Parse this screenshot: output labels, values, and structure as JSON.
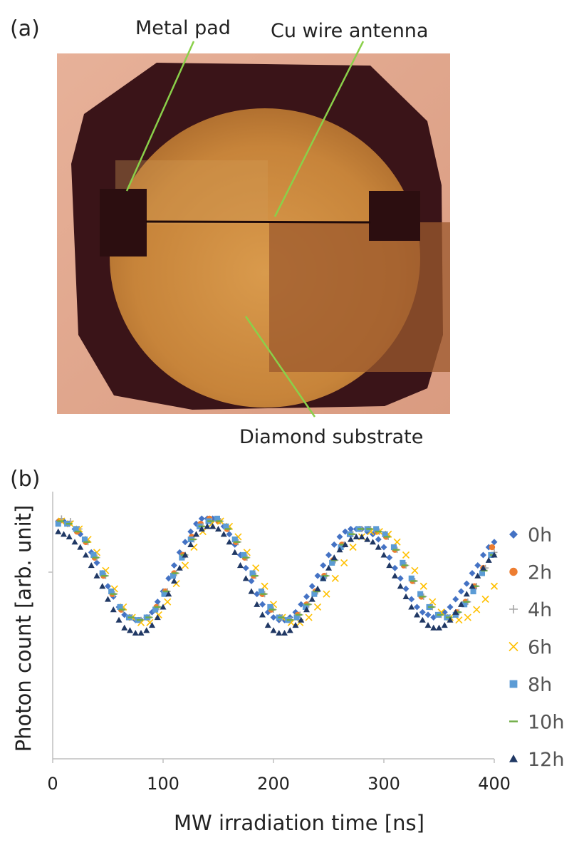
{
  "panel_a": {
    "label": "(a)",
    "annotations": {
      "metal_pad": "Metal pad",
      "antenna": "Cu wire antenna",
      "substrate": "Diamond substrate"
    },
    "colors": {
      "background": "#dea488",
      "diamond": "#c98a3e",
      "metal": "#3a1418",
      "leader": "#8ad04a"
    }
  },
  "panel_b": {
    "label": "(b)",
    "chart_data": {
      "type": "scatter",
      "xlabel": "MW irradiation time [ns]",
      "ylabel": "Photon count [arb. unit]",
      "xlim": [
        0,
        400
      ],
      "xticks": [
        "0",
        "100",
        "200",
        "300",
        "400"
      ],
      "ylim": [
        0,
        1
      ],
      "grid": false,
      "legend": "right",
      "series": [
        {
          "name": "0h",
          "marker": "diamond",
          "color": "#4472c4",
          "x": [
            5,
            10,
            15,
            20,
            25,
            30,
            35,
            40,
            45,
            50,
            55,
            60,
            65,
            70,
            75,
            80,
            85,
            90,
            95,
            100,
            105,
            110,
            115,
            120,
            125,
            130,
            135,
            140,
            145,
            150,
            155,
            160,
            165,
            170,
            175,
            180,
            185,
            190,
            195,
            200,
            205,
            210,
            215,
            220,
            225,
            230,
            235,
            240,
            245,
            250,
            255,
            260,
            265,
            270,
            275,
            280,
            285,
            290,
            295,
            300,
            305,
            310,
            315,
            320,
            325,
            330,
            335,
            340,
            345,
            350,
            355,
            360,
            365,
            370,
            375,
            380,
            385,
            390,
            395,
            400
          ],
          "y": [
            0.9,
            0.9,
            0.89,
            0.87,
            0.85,
            0.82,
            0.78,
            0.74,
            0.7,
            0.65,
            0.61,
            0.57,
            0.54,
            0.53,
            0.52,
            0.52,
            0.53,
            0.55,
            0.59,
            0.63,
            0.68,
            0.73,
            0.78,
            0.82,
            0.86,
            0.89,
            0.91,
            0.91,
            0.91,
            0.9,
            0.88,
            0.85,
            0.81,
            0.77,
            0.72,
            0.67,
            0.62,
            0.58,
            0.55,
            0.53,
            0.52,
            0.52,
            0.53,
            0.55,
            0.58,
            0.61,
            0.65,
            0.69,
            0.73,
            0.77,
            0.81,
            0.84,
            0.86,
            0.87,
            0.87,
            0.87,
            0.86,
            0.85,
            0.83,
            0.8,
            0.76,
            0.72,
            0.68,
            0.64,
            0.6,
            0.57,
            0.55,
            0.54,
            0.53,
            0.54,
            0.55,
            0.57,
            0.6,
            0.63,
            0.66,
            0.7,
            0.73,
            0.77,
            0.8,
            0.82
          ]
        },
        {
          "name": "2h",
          "marker": "circle",
          "color": "#ed7d31",
          "x": [
            6,
            14,
            22,
            30,
            38,
            46,
            54,
            62,
            70,
            78,
            86,
            94,
            102,
            110,
            118,
            126,
            134,
            142,
            150,
            158,
            166,
            174,
            182,
            190,
            198,
            206,
            214,
            222,
            230,
            238,
            246,
            254,
            262,
            270,
            278,
            286,
            294,
            302,
            310,
            318,
            326,
            334,
            342,
            350,
            358,
            366,
            374,
            382,
            390,
            398
          ],
          "y": [
            0.9,
            0.89,
            0.86,
            0.82,
            0.76,
            0.69,
            0.62,
            0.56,
            0.53,
            0.52,
            0.53,
            0.57,
            0.63,
            0.7,
            0.77,
            0.84,
            0.89,
            0.91,
            0.9,
            0.87,
            0.82,
            0.76,
            0.69,
            0.62,
            0.56,
            0.53,
            0.52,
            0.54,
            0.58,
            0.63,
            0.69,
            0.75,
            0.81,
            0.85,
            0.87,
            0.87,
            0.86,
            0.84,
            0.79,
            0.73,
            0.67,
            0.61,
            0.57,
            0.54,
            0.53,
            0.55,
            0.59,
            0.65,
            0.72,
            0.8
          ]
        },
        {
          "name": "4h",
          "marker": "plus",
          "color": "#a5a5a5",
          "x": [
            8,
            16,
            24,
            32,
            40,
            48,
            56,
            64,
            72,
            80,
            88,
            96,
            104,
            112,
            120,
            128,
            136,
            144,
            152,
            160,
            168,
            176,
            184,
            192,
            200,
            208,
            216,
            224,
            232,
            240,
            248,
            256,
            264,
            272,
            280,
            288,
            296,
            304,
            312,
            320,
            328,
            336,
            344,
            352,
            360,
            368,
            376,
            384,
            392,
            400
          ],
          "y": [
            0.91,
            0.9,
            0.87,
            0.82,
            0.76,
            0.69,
            0.62,
            0.56,
            0.53,
            0.52,
            0.53,
            0.57,
            0.63,
            0.7,
            0.77,
            0.83,
            0.88,
            0.9,
            0.9,
            0.87,
            0.82,
            0.76,
            0.69,
            0.62,
            0.56,
            0.53,
            0.52,
            0.54,
            0.58,
            0.63,
            0.69,
            0.75,
            0.81,
            0.85,
            0.87,
            0.87,
            0.86,
            0.84,
            0.79,
            0.73,
            0.67,
            0.61,
            0.57,
            0.54,
            0.53,
            0.55,
            0.59,
            0.65,
            0.72,
            0.78
          ]
        },
        {
          "name": "6h",
          "marker": "x",
          "color": "#ffc000",
          "x": [
            8,
            16,
            24,
            32,
            40,
            48,
            56,
            64,
            72,
            80,
            88,
            96,
            104,
            112,
            120,
            128,
            136,
            144,
            152,
            160,
            168,
            176,
            184,
            192,
            200,
            208,
            216,
            224,
            232,
            240,
            248,
            256,
            264,
            272,
            280,
            288,
            296,
            304,
            312,
            320,
            328,
            336,
            344,
            352,
            360,
            368,
            376,
            384,
            392,
            400
          ],
          "y": [
            0.9,
            0.89,
            0.87,
            0.83,
            0.78,
            0.71,
            0.64,
            0.57,
            0.53,
            0.51,
            0.51,
            0.54,
            0.59,
            0.66,
            0.73,
            0.8,
            0.86,
            0.89,
            0.9,
            0.88,
            0.84,
            0.78,
            0.72,
            0.65,
            0.58,
            0.53,
            0.51,
            0.51,
            0.53,
            0.57,
            0.62,
            0.68,
            0.74,
            0.8,
            0.84,
            0.86,
            0.86,
            0.85,
            0.82,
            0.77,
            0.71,
            0.65,
            0.59,
            0.55,
            0.53,
            0.52,
            0.53,
            0.56,
            0.6,
            0.65
          ]
        },
        {
          "name": "8h",
          "marker": "square",
          "color": "#5b9bd5",
          "x": [
            5,
            13,
            21,
            29,
            37,
            45,
            53,
            61,
            69,
            77,
            85,
            93,
            101,
            109,
            117,
            125,
            133,
            141,
            149,
            157,
            165,
            173,
            181,
            189,
            197,
            205,
            213,
            221,
            229,
            237,
            245,
            253,
            261,
            269,
            277,
            285,
            293,
            301,
            309,
            317,
            325,
            333,
            341,
            349,
            357,
            365,
            373,
            381,
            389,
            397
          ],
          "y": [
            0.89,
            0.89,
            0.87,
            0.83,
            0.77,
            0.7,
            0.63,
            0.57,
            0.53,
            0.52,
            0.53,
            0.56,
            0.62,
            0.69,
            0.76,
            0.83,
            0.88,
            0.9,
            0.91,
            0.88,
            0.83,
            0.77,
            0.7,
            0.63,
            0.57,
            0.53,
            0.52,
            0.53,
            0.57,
            0.62,
            0.68,
            0.74,
            0.8,
            0.85,
            0.87,
            0.87,
            0.87,
            0.85,
            0.8,
            0.74,
            0.68,
            0.62,
            0.57,
            0.54,
            0.53,
            0.54,
            0.58,
            0.63,
            0.7,
            0.77
          ]
        },
        {
          "name": "10h",
          "marker": "dash",
          "color": "#70ad47",
          "x": [
            7,
            15,
            23,
            31,
            39,
            47,
            55,
            63,
            71,
            79,
            87,
            95,
            103,
            111,
            119,
            127,
            135,
            143,
            151,
            159,
            167,
            175,
            183,
            191,
            199,
            207,
            215,
            223,
            231,
            239,
            247,
            255,
            263,
            271,
            279,
            287,
            295,
            303,
            311,
            319,
            327,
            335,
            343,
            351,
            359,
            367,
            375,
            383,
            391,
            399
          ],
          "y": [
            0.9,
            0.89,
            0.86,
            0.82,
            0.76,
            0.69,
            0.62,
            0.56,
            0.53,
            0.52,
            0.53,
            0.57,
            0.63,
            0.7,
            0.77,
            0.83,
            0.88,
            0.9,
            0.9,
            0.87,
            0.82,
            0.76,
            0.69,
            0.62,
            0.56,
            0.53,
            0.52,
            0.54,
            0.58,
            0.63,
            0.69,
            0.75,
            0.81,
            0.85,
            0.87,
            0.87,
            0.86,
            0.84,
            0.79,
            0.73,
            0.67,
            0.61,
            0.57,
            0.54,
            0.53,
            0.55,
            0.59,
            0.65,
            0.71,
            0.77
          ]
        },
        {
          "name": "12h",
          "marker": "triangle",
          "color": "#203864",
          "x": [
            5,
            10,
            15,
            20,
            25,
            30,
            35,
            40,
            45,
            50,
            55,
            60,
            65,
            70,
            75,
            80,
            85,
            90,
            95,
            100,
            105,
            110,
            115,
            120,
            125,
            130,
            135,
            140,
            145,
            150,
            155,
            160,
            165,
            170,
            175,
            180,
            185,
            190,
            195,
            200,
            205,
            210,
            215,
            220,
            225,
            230,
            235,
            240,
            245,
            250,
            255,
            260,
            265,
            270,
            275,
            280,
            285,
            290,
            295,
            300,
            305,
            310,
            315,
            320,
            325,
            330,
            335,
            340,
            345,
            350,
            355,
            360,
            365,
            370,
            375,
            380,
            385,
            390,
            395,
            400
          ],
          "y": [
            0.86,
            0.85,
            0.84,
            0.82,
            0.8,
            0.77,
            0.73,
            0.69,
            0.65,
            0.6,
            0.56,
            0.52,
            0.49,
            0.48,
            0.47,
            0.47,
            0.48,
            0.5,
            0.53,
            0.57,
            0.62,
            0.67,
            0.72,
            0.77,
            0.81,
            0.85,
            0.87,
            0.88,
            0.88,
            0.87,
            0.85,
            0.82,
            0.78,
            0.73,
            0.68,
            0.63,
            0.58,
            0.54,
            0.5,
            0.48,
            0.47,
            0.47,
            0.48,
            0.5,
            0.52,
            0.56,
            0.6,
            0.64,
            0.68,
            0.72,
            0.76,
            0.79,
            0.81,
            0.83,
            0.84,
            0.84,
            0.83,
            0.82,
            0.8,
            0.77,
            0.73,
            0.69,
            0.65,
            0.61,
            0.57,
            0.54,
            0.52,
            0.5,
            0.49,
            0.49,
            0.5,
            0.52,
            0.55,
            0.58,
            0.62,
            0.65,
            0.69,
            0.72,
            0.75,
            0.77
          ]
        }
      ]
    }
  }
}
